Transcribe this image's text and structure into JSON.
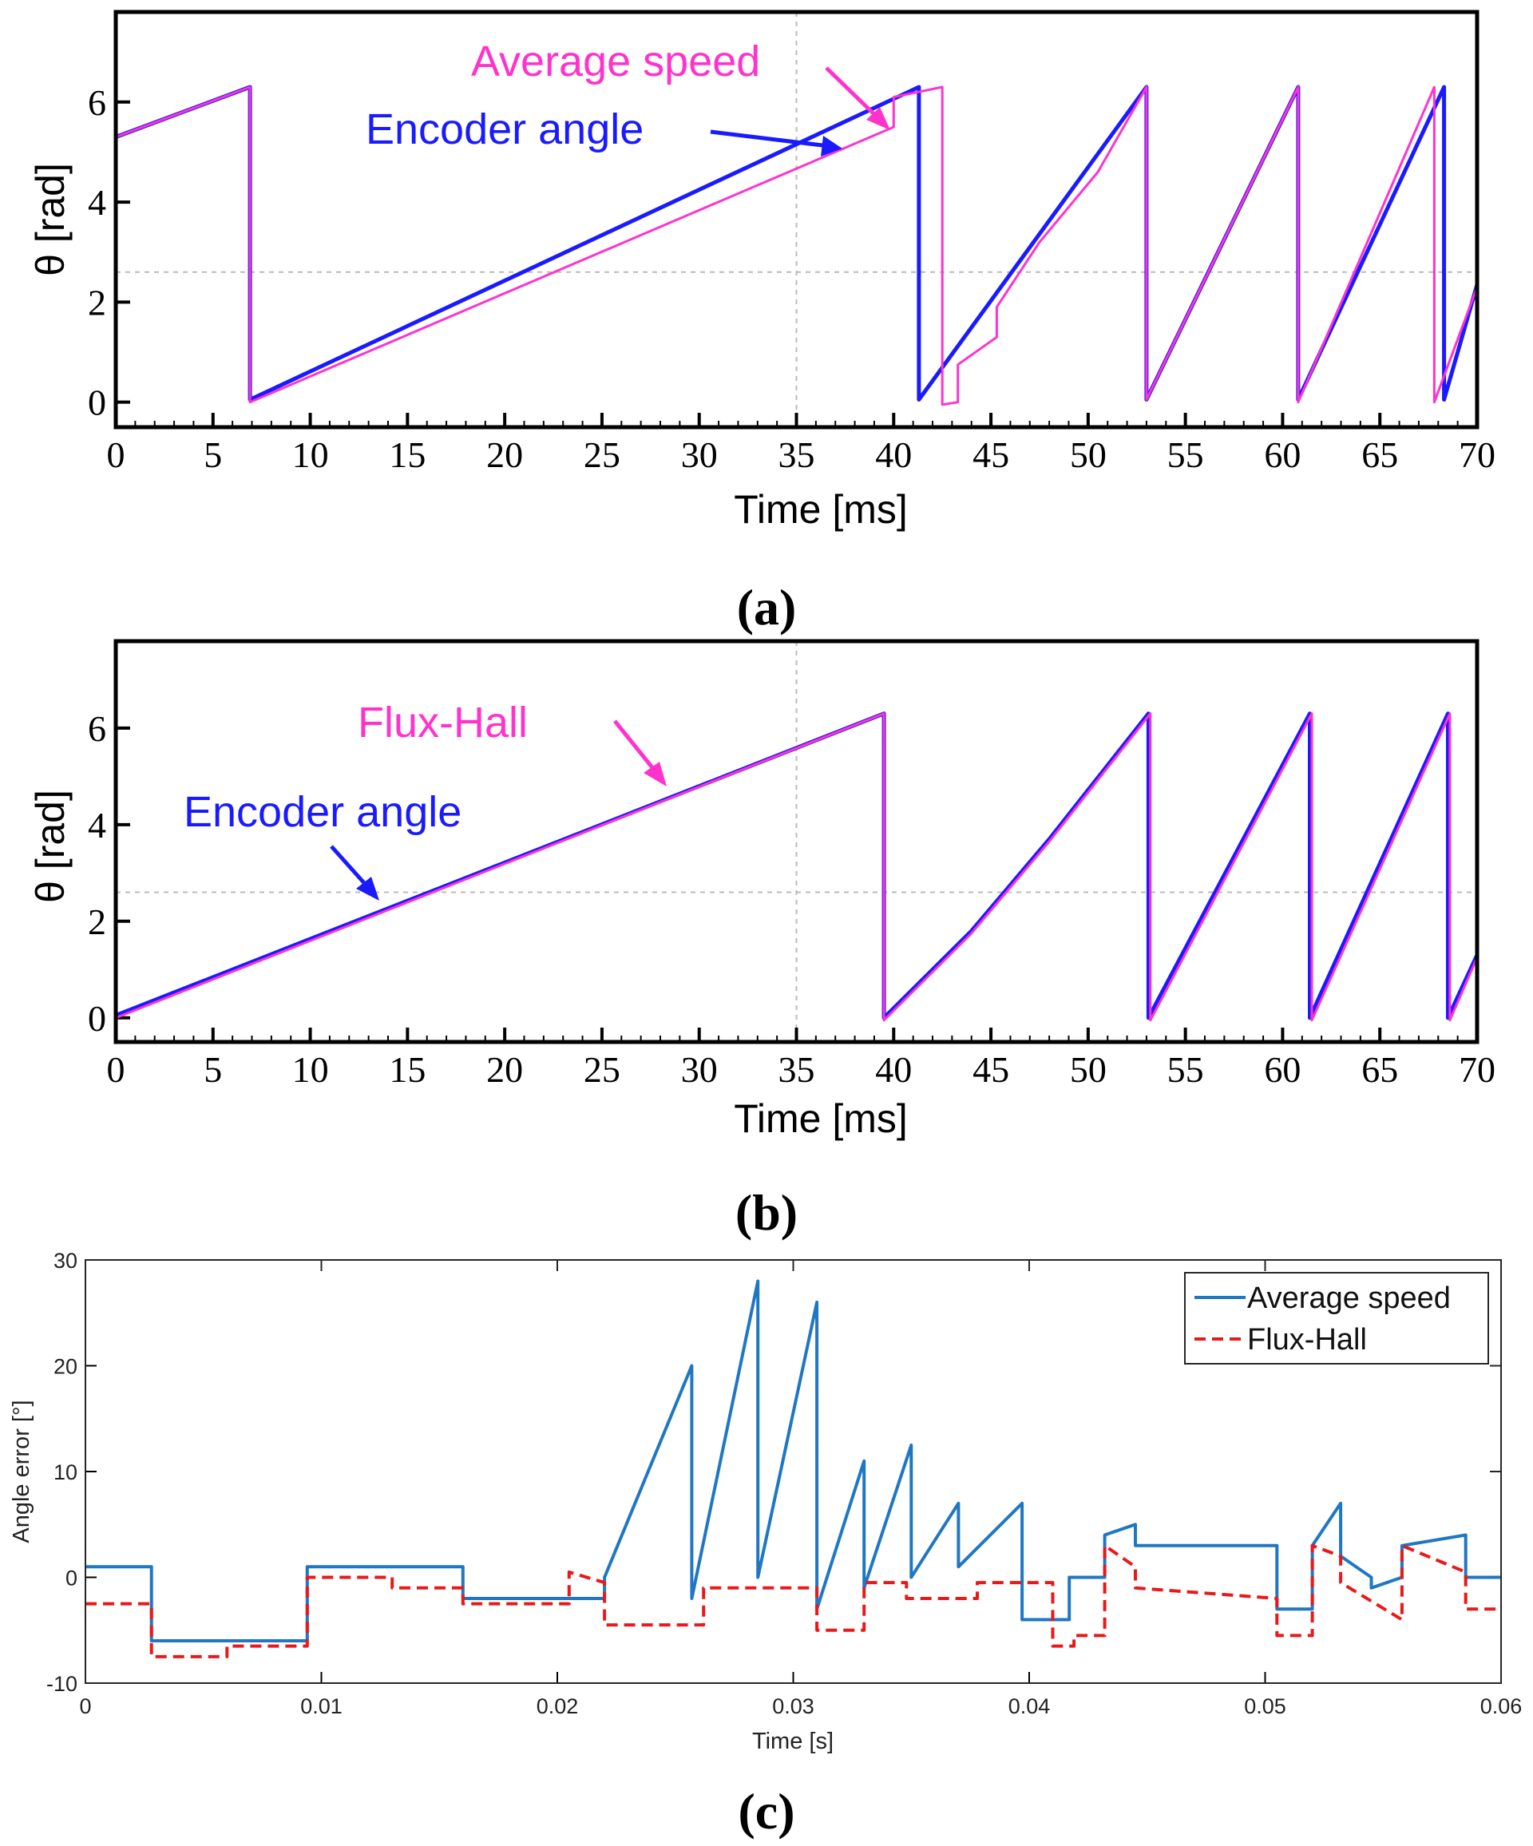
{
  "colors": {
    "encoder": "#1a1aff",
    "average_speed_a": "#ff33cc",
    "flux_hall_b": "#ff33cc",
    "average_speed_c": "#1f77c4",
    "flux_hall_c": "#e8191a",
    "crosshair": "#bbbbbb"
  },
  "captions": {
    "a": "(a)",
    "b": "(b)",
    "c": "(c)"
  },
  "annotations": {
    "a_avg": "Average speed",
    "a_enc": "Encoder angle",
    "b_flux": "Flux-Hall",
    "b_enc": "Encoder angle"
  },
  "chart_data": [
    {
      "id": "a",
      "type": "line",
      "xlabel": "Time [ms]",
      "ylabel": "θ [rad]",
      "xlim": [
        0,
        70
      ],
      "ylim": [
        -0.5,
        7.8
      ],
      "xticks": [
        0,
        5,
        10,
        15,
        20,
        25,
        30,
        35,
        40,
        45,
        50,
        55,
        60,
        65,
        70
      ],
      "yticks": [
        0,
        2,
        4,
        6
      ],
      "series": [
        {
          "name": "Encoder angle",
          "color_key": "encoder",
          "width": 5,
          "x": [
            0,
            6.9,
            6.9,
            41.3,
            41.3,
            53,
            53,
            60.8,
            60.8,
            68.3,
            68.3,
            70
          ],
          "y": [
            5.3,
            6.3,
            0.05,
            6.3,
            0.05,
            6.3,
            0.05,
            6.3,
            0.05,
            6.3,
            0.05,
            2.35
          ]
        },
        {
          "name": "Average speed",
          "color_key": "average_speed_a",
          "width": 3,
          "x": [
            0,
            6.9,
            6.9,
            40.0,
            40.0,
            42.5,
            42.5,
            43.3,
            43.3,
            45.3,
            45.3,
            47.5,
            50.5,
            53.0,
            53.0,
            60.8,
            60.8,
            67.8,
            67.8,
            70
          ],
          "y": [
            5.3,
            6.3,
            0.0,
            5.5,
            6.1,
            6.3,
            -0.05,
            0.0,
            0.75,
            1.3,
            1.9,
            3.2,
            4.6,
            6.3,
            0.05,
            6.3,
            0.0,
            6.3,
            0.0,
            2.3
          ]
        }
      ]
    },
    {
      "id": "b",
      "type": "line",
      "xlabel": "Time [ms]",
      "ylabel": "θ [rad]",
      "xlim": [
        0,
        70
      ],
      "ylim": [
        -0.5,
        7.8
      ],
      "xticks": [
        0,
        5,
        10,
        15,
        20,
        25,
        30,
        35,
        40,
        45,
        50,
        55,
        60,
        65,
        70
      ],
      "yticks": [
        0,
        2,
        4,
        6
      ],
      "series": [
        {
          "name": "Encoder angle",
          "color_key": "encoder",
          "width": 5,
          "x": [
            0,
            39.5,
            39.5,
            44.0,
            48.0,
            53.1,
            53.1,
            61.4,
            61.4,
            68.5,
            68.5,
            70
          ],
          "y": [
            0.05,
            6.3,
            0.0,
            1.8,
            3.7,
            6.3,
            0.0,
            6.3,
            0.0,
            6.3,
            0.0,
            1.3
          ]
        },
        {
          "name": "Flux-Hall",
          "color_key": "flux_hall_b",
          "width": 3,
          "x": [
            0,
            39.5,
            39.5,
            44.0,
            48.0,
            53.2,
            53.2,
            61.5,
            61.5,
            68.6,
            68.6,
            70
          ],
          "y": [
            0.0,
            6.3,
            -0.05,
            1.75,
            3.65,
            6.3,
            -0.05,
            6.3,
            -0.05,
            6.3,
            -0.05,
            1.25
          ]
        }
      ]
    },
    {
      "id": "c",
      "type": "line",
      "xlabel": "Time [s]",
      "ylabel": "Angle error [°]",
      "xlim": [
        0,
        0.06
      ],
      "ylim": [
        -10,
        30
      ],
      "xticks": [
        0,
        0.01,
        0.02,
        0.03,
        0.04,
        0.05,
        0.06
      ],
      "xticklabels": [
        "0",
        "0.01",
        "0.02",
        "0.03",
        "0.04",
        "0.05",
        "0.06"
      ],
      "yticks": [
        -10,
        0,
        10,
        20,
        30
      ],
      "legend_position": "top-right",
      "series": [
        {
          "name": "Average speed",
          "color_key": "average_speed_c",
          "style": "solid",
          "x": [
            0,
            0.0028,
            0.0028,
            0.0094,
            0.0094,
            0.016,
            0.016,
            0.022,
            0.022,
            0.0257,
            0.0257,
            0.0285,
            0.0285,
            0.031,
            0.031,
            0.033,
            0.033,
            0.035,
            0.035,
            0.037,
            0.037,
            0.0397,
            0.0397,
            0.0417,
            0.0417,
            0.0432,
            0.0432,
            0.0445,
            0.0445,
            0.0505,
            0.0505,
            0.052,
            0.052,
            0.0532,
            0.0532,
            0.0545,
            0.0545,
            0.0558,
            0.0558,
            0.0585,
            0.0585,
            0.06
          ],
          "y": [
            1,
            1,
            -6,
            -6,
            1,
            1,
            -2,
            -2,
            0,
            20,
            -2,
            28,
            0,
            26,
            -3,
            11,
            -1,
            12.5,
            0,
            7,
            1,
            7,
            -4,
            -4,
            0,
            0,
            4,
            5,
            3,
            3,
            -3,
            -3,
            3,
            7,
            2,
            0,
            -1,
            0,
            3,
            4,
            0,
            0
          ]
        },
        {
          "name": "Flux-Hall",
          "color_key": "flux_hall_c",
          "style": "dashed",
          "x": [
            0,
            0.0028,
            0.0028,
            0.006,
            0.006,
            0.0094,
            0.0094,
            0.013,
            0.013,
            0.016,
            0.016,
            0.0205,
            0.0205,
            0.022,
            0.022,
            0.0262,
            0.0262,
            0.031,
            0.031,
            0.033,
            0.033,
            0.0348,
            0.0348,
            0.0378,
            0.0378,
            0.041,
            0.041,
            0.0419,
            0.0419,
            0.0432,
            0.0432,
            0.0445,
            0.0445,
            0.0505,
            0.0505,
            0.052,
            0.052,
            0.0532,
            0.0532,
            0.0558,
            0.0558,
            0.0585,
            0.0585,
            0.06
          ],
          "y": [
            -2.5,
            -2.5,
            -7.5,
            -7.5,
            -6.5,
            -6.5,
            0,
            0,
            -1,
            -1,
            -2.5,
            -2.5,
            0.5,
            -0.5,
            -4.5,
            -4.5,
            -1,
            -1,
            -5,
            -5,
            -0.5,
            -0.5,
            -2,
            -2,
            -0.5,
            -0.5,
            -6.5,
            -6.5,
            -5.5,
            -5.5,
            3,
            1,
            -1,
            -2,
            -5.5,
            -5.5,
            3,
            2,
            -0.5,
            -4,
            3,
            0.5,
            -3,
            -3
          ]
        }
      ]
    }
  ]
}
